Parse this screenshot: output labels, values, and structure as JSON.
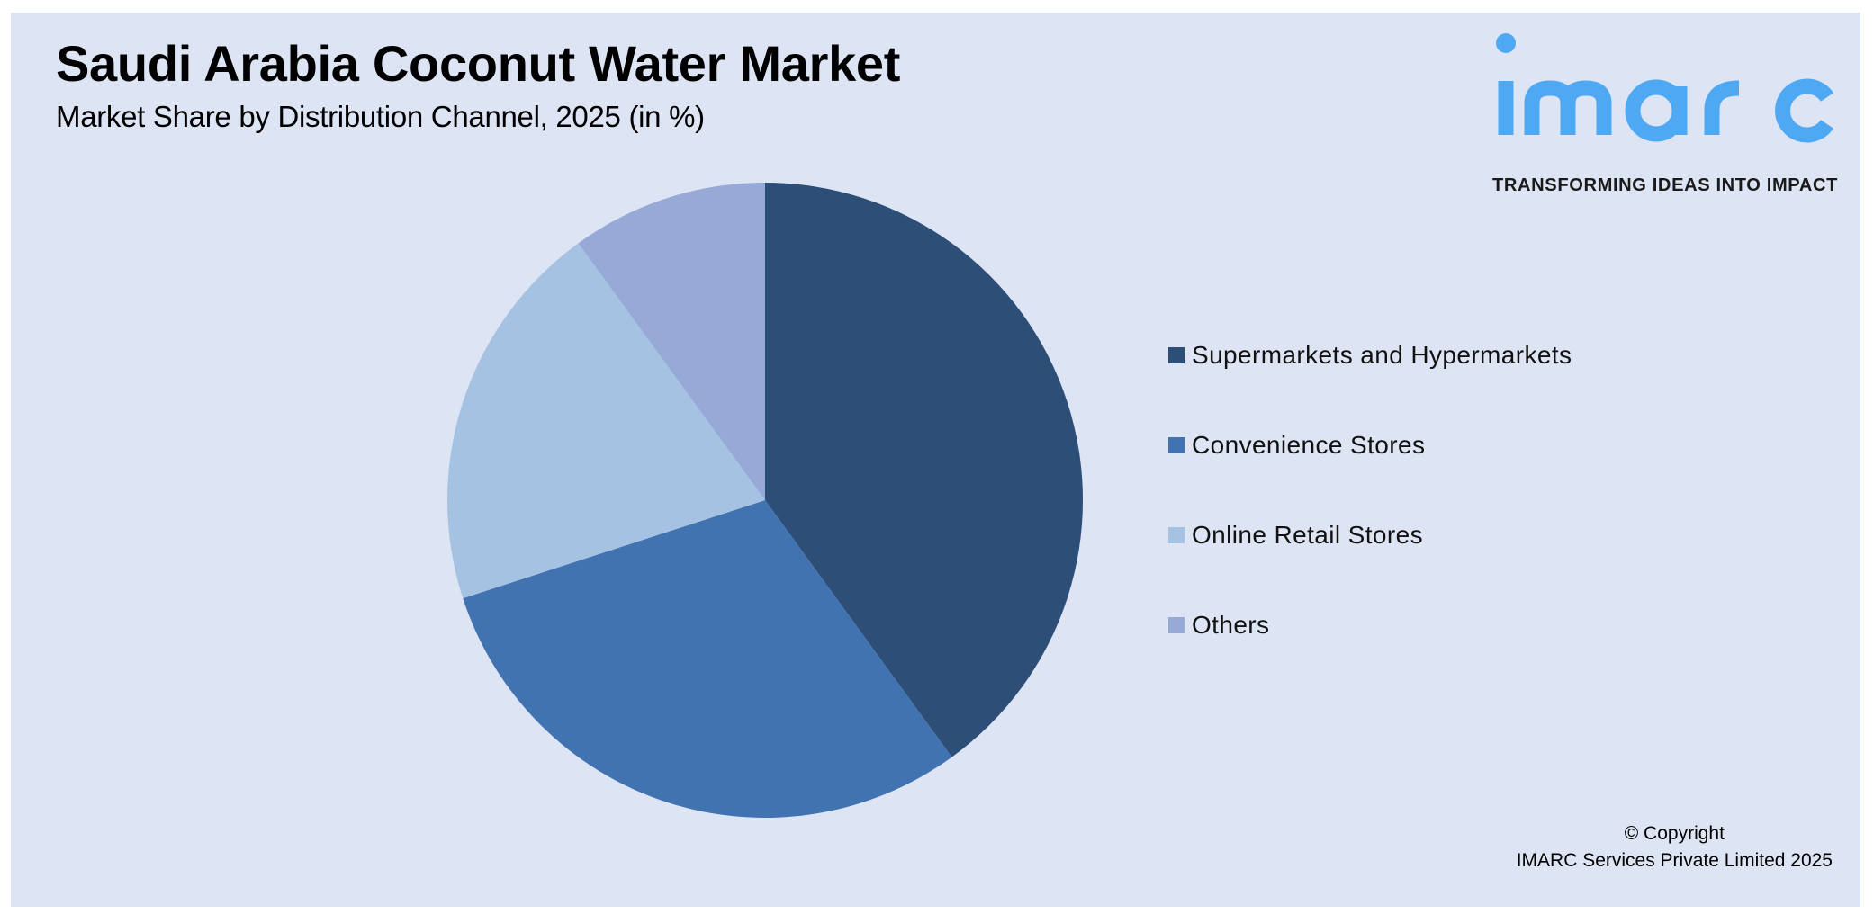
{
  "header": {
    "title": "Saudi Arabia Coconut Water Market",
    "subtitle": "Market Share by Distribution Channel, 2025 (in %)"
  },
  "logo": {
    "wordmark": "imarc",
    "tagline": "TRANSFORMING IDEAS INTO IMPACT",
    "color": "#4ea8f2"
  },
  "legend": {
    "items": [
      {
        "label": "Supermarkets and Hypermarkets",
        "color": "#2c4e77"
      },
      {
        "label": "Convenience Stores",
        "color": "#4173b0"
      },
      {
        "label": "Online Retail Stores",
        "color": "#a6c2e2"
      },
      {
        "label": "Others",
        "color": "#96a9d7"
      }
    ]
  },
  "footer": {
    "copyright_line1": "© Copyright",
    "copyright_line2": "IMARC Services Private Limited 2025"
  },
  "colors": {
    "background": "#dde4f3"
  },
  "chart_data": {
    "type": "pie",
    "title": "Saudi Arabia Coconut Water Market",
    "subtitle": "Market Share by Distribution Channel, 2025 (in %)",
    "categories": [
      "Supermarkets and Hypermarkets",
      "Convenience Stores",
      "Online Retail Stores",
      "Others"
    ],
    "values": [
      40,
      30,
      20,
      10
    ],
    "colors": [
      "#2c4e77",
      "#4173b0",
      "#a6c2e2",
      "#96a9d7"
    ],
    "start_angle_deg": 0,
    "direction": "clockwise",
    "legend_position": "right",
    "data_labels": false
  }
}
